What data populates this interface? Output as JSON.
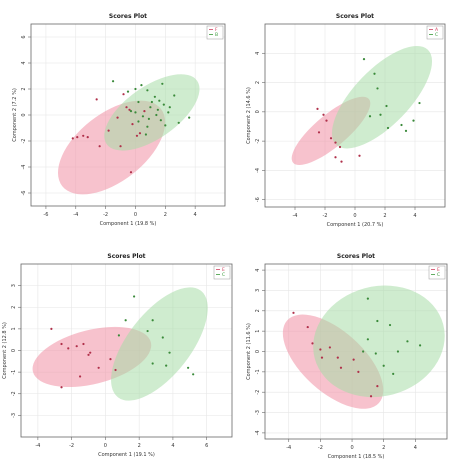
{
  "colors": {
    "red": "#e07088",
    "green": "#7bc47b",
    "red_fill": "#f08fa4",
    "green_fill": "#a8dca8",
    "overlap": "#b8a878",
    "grid": "#e6e6e6",
    "frame": "#666666"
  },
  "chart_data": [
    {
      "type": "scatter",
      "title": "Scores Plot",
      "xlabel": "Component 1 (19.8 %)",
      "ylabel": "Component 2 (7.2 %)",
      "xlim": [
        -7,
        6
      ],
      "ylim": [
        -7,
        7
      ],
      "xticks": [
        -6,
        -4,
        -2,
        0,
        2,
        4
      ],
      "yticks": [
        -6,
        -4,
        -2,
        0,
        2,
        4,
        6
      ],
      "legend": [
        "F",
        "B"
      ],
      "legend_position": "top-right",
      "grid": true,
      "ellipses": [
        {
          "group": 0,
          "cx": -1.6,
          "cy": -2.5,
          "rx": 4.2,
          "ry": 2.6,
          "angle": 38
        },
        {
          "group": 1,
          "cx": 1.1,
          "cy": 0.2,
          "rx": 3.7,
          "ry": 2.0,
          "angle": 35
        }
      ],
      "series": [
        {
          "name": "F",
          "points": [
            [
              -4.2,
              -1.8
            ],
            [
              -3.9,
              -1.7
            ],
            [
              -3.5,
              -1.6
            ],
            [
              -3.2,
              -1.7
            ],
            [
              -1.8,
              -1.2
            ],
            [
              -2.4,
              -2.4
            ],
            [
              -1.2,
              -0.2
            ],
            [
              -2.6,
              1.2
            ],
            [
              -0.6,
              0.6
            ],
            [
              -0.4,
              0.4
            ],
            [
              -1.0,
              -2.4
            ],
            [
              -0.3,
              -4.4
            ],
            [
              -0.2,
              -0.7
            ],
            [
              0.3,
              -1.4
            ],
            [
              0.6,
              0.3
            ],
            [
              0.1,
              -1.6
            ],
            [
              -0.8,
              1.6
            ]
          ]
        },
        {
          "name": "B",
          "points": [
            [
              -0.5,
              1.8
            ],
            [
              0.0,
              2.0
            ],
            [
              0.4,
              2.3
            ],
            [
              0.8,
              1.9
            ],
            [
              1.3,
              1.4
            ],
            [
              1.6,
              1.1
            ],
            [
              1.9,
              0.8
            ],
            [
              2.3,
              0.6
            ],
            [
              2.6,
              1.5
            ],
            [
              2.2,
              0.2
            ],
            [
              1.4,
              0.0
            ],
            [
              0.9,
              -0.3
            ],
            [
              0.5,
              -0.1
            ],
            [
              1.0,
              0.6
            ],
            [
              1.7,
              -0.4
            ],
            [
              2.0,
              -0.8
            ],
            [
              0.8,
              -0.9
            ],
            [
              0.2,
              -0.5
            ],
            [
              -0.3,
              0.3
            ],
            [
              0.2,
              1.0
            ],
            [
              1.8,
              2.4
            ],
            [
              2.9,
              -0.6
            ],
            [
              0.0,
              0.2
            ],
            [
              1.1,
              1.0
            ],
            [
              3.6,
              -0.2
            ],
            [
              -1.5,
              2.6
            ],
            [
              0.7,
              -1.5
            ],
            [
              1.5,
              0.4
            ]
          ]
        }
      ]
    },
    {
      "type": "scatter",
      "title": "Scores Plot",
      "xlabel": "Component 1 (20.7 %)",
      "ylabel": "Component 2 (14.6 %)",
      "xlim": [
        -6,
        6
      ],
      "ylim": [
        -6.5,
        6
      ],
      "xticks": [
        -4,
        -2,
        0,
        2,
        4
      ],
      "yticks": [
        -6,
        -4,
        -2,
        0,
        2,
        4
      ],
      "legend": [
        "A",
        "C"
      ],
      "legend_position": "top-right",
      "grid": true,
      "ellipses": [
        {
          "group": 0,
          "cx": -1.6,
          "cy": -1.3,
          "rx": 3.3,
          "ry": 1.1,
          "angle": 40
        },
        {
          "group": 1,
          "cx": 1.8,
          "cy": 1.0,
          "rx": 4.4,
          "ry": 1.9,
          "angle": 46
        }
      ],
      "series": [
        {
          "name": "A",
          "points": [
            [
              -2.5,
              0.2
            ],
            [
              -2.1,
              -0.2
            ],
            [
              -1.9,
              -0.6
            ],
            [
              -2.4,
              -1.4
            ],
            [
              -1.6,
              -1.8
            ],
            [
              -1.3,
              -2.1
            ],
            [
              -1.0,
              -2.4
            ],
            [
              0.3,
              -3.0
            ],
            [
              -1.3,
              -3.1
            ],
            [
              -0.9,
              -3.4
            ]
          ]
        },
        {
          "name": "C",
          "points": [
            [
              0.6,
              3.6
            ],
            [
              1.3,
              2.6
            ],
            [
              1.5,
              1.6
            ],
            [
              2.1,
              0.4
            ],
            [
              1.7,
              -0.2
            ],
            [
              2.2,
              -1.1
            ],
            [
              3.1,
              -0.9
            ],
            [
              3.9,
              -0.6
            ],
            [
              3.4,
              -1.3
            ],
            [
              4.3,
              0.6
            ],
            [
              1.0,
              -0.3
            ]
          ]
        }
      ]
    },
    {
      "type": "scatter",
      "title": "Scores Plot",
      "xlabel": "Component 1 (19.1 %)",
      "ylabel": "Component 2 (12.8 %)",
      "xlim": [
        -5,
        7.5
      ],
      "ylim": [
        -4,
        4
      ],
      "xticks": [
        -4,
        -2,
        0,
        2,
        4,
        6
      ],
      "yticks": [
        -3,
        -2,
        -1,
        0,
        1,
        2,
        3
      ],
      "legend": [
        "E",
        "C"
      ],
      "legend_position": "top-right",
      "grid": true,
      "ellipses": [
        {
          "group": 0,
          "cx": -0.8,
          "cy": -0.3,
          "rx": 3.6,
          "ry": 1.25,
          "angle": 14
        },
        {
          "group": 1,
          "cx": 3.2,
          "cy": 0.3,
          "rx": 4.0,
          "ry": 1.45,
          "angle": 52
        }
      ],
      "series": [
        {
          "name": "E",
          "points": [
            [
              -3.2,
              1.0
            ],
            [
              -2.6,
              0.3
            ],
            [
              -2.2,
              0.1
            ],
            [
              -1.7,
              0.2
            ],
            [
              -1.3,
              0.3
            ],
            [
              -0.9,
              -0.1
            ],
            [
              -0.4,
              -0.8
            ],
            [
              -1.5,
              -1.2
            ],
            [
              -2.6,
              -1.7
            ],
            [
              -1.0,
              -0.2
            ],
            [
              0.3,
              -0.4
            ],
            [
              0.6,
              -0.9
            ]
          ]
        },
        {
          "name": "C",
          "points": [
            [
              1.7,
              2.5
            ],
            [
              1.2,
              1.4
            ],
            [
              2.8,
              1.4
            ],
            [
              3.4,
              0.6
            ],
            [
              3.8,
              -0.1
            ],
            [
              2.8,
              -0.6
            ],
            [
              2.5,
              0.9
            ],
            [
              3.6,
              -0.7
            ],
            [
              4.9,
              -0.8
            ],
            [
              5.2,
              -1.1
            ],
            [
              0.8,
              0.7
            ]
          ]
        }
      ]
    },
    {
      "type": "scatter",
      "title": "Scores Plot",
      "xlabel": "Component 1 (18.5 %)",
      "ylabel": "Component 2 (11.6 %)",
      "xlim": [
        -5.5,
        6
      ],
      "ylim": [
        -4.3,
        4.3
      ],
      "xticks": [
        -4,
        -2,
        0,
        2,
        4
      ],
      "yticks": [
        -4,
        -3,
        -2,
        -1,
        0,
        1,
        2,
        3,
        4
      ],
      "legend": [
        "E",
        "C"
      ],
      "legend_position": "top-right",
      "grid": true,
      "ellipses": [
        {
          "group": 0,
          "cx": -1.2,
          "cy": -0.5,
          "rx": 3.9,
          "ry": 1.5,
          "angle": -42
        },
        {
          "group": 1,
          "cx": 1.7,
          "cy": 0.5,
          "rx": 4.2,
          "ry": 2.7,
          "angle": 15
        }
      ],
      "series": [
        {
          "name": "E",
          "points": [
            [
              -3.7,
              1.9
            ],
            [
              -2.8,
              1.2
            ],
            [
              -2.5,
              0.4
            ],
            [
              -2.0,
              0.1
            ],
            [
              -1.4,
              0.2
            ],
            [
              -0.9,
              -0.3
            ],
            [
              -1.9,
              -0.3
            ],
            [
              -0.7,
              -0.8
            ],
            [
              0.1,
              -0.4
            ],
            [
              0.4,
              -1.0
            ],
            [
              1.6,
              -1.7
            ],
            [
              1.2,
              -2.2
            ]
          ]
        },
        {
          "name": "C",
          "points": [
            [
              1.0,
              2.6
            ],
            [
              1.6,
              1.5
            ],
            [
              2.4,
              1.3
            ],
            [
              1.0,
              0.6
            ],
            [
              2.9,
              0.0
            ],
            [
              4.3,
              0.3
            ],
            [
              3.5,
              0.5
            ],
            [
              2.0,
              -0.7
            ],
            [
              2.6,
              -1.1
            ],
            [
              1.5,
              -0.1
            ],
            [
              0.7,
              0.0
            ]
          ]
        }
      ]
    }
  ]
}
